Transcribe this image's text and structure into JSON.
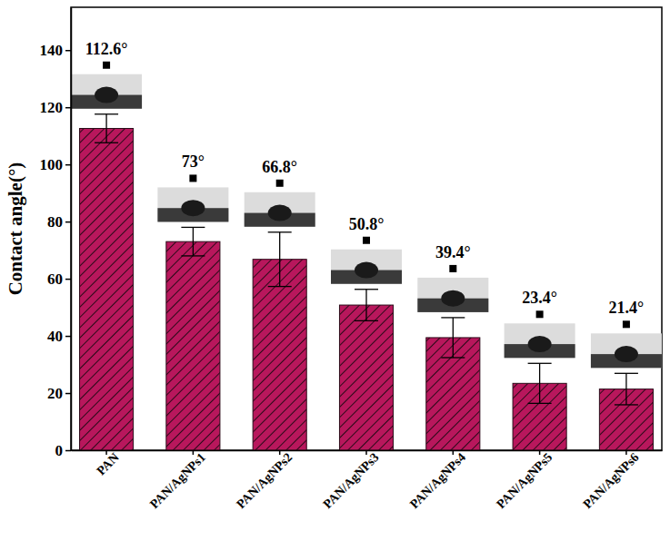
{
  "chart_data": {
    "type": "bar",
    "y_label": "Contact angle(°)",
    "categories": [
      "PAN",
      "PAN/AgNPs1",
      "PAN/AgNPs2",
      "PAN/AgNPs3",
      "PAN/AgNPs4",
      "PAN/AgNPs5",
      "PAN/AgNPs6"
    ],
    "values": [
      112.6,
      73,
      66.8,
      50.8,
      39.4,
      23.4,
      21.4
    ],
    "value_labels": [
      "112.6°",
      "73°",
      "66.8°",
      "50.8°",
      "39.4°",
      "23.4°",
      "21.4°"
    ],
    "errors": [
      5,
      5,
      9.5,
      5.5,
      7,
      7,
      5.5
    ],
    "color": "#b8175c",
    "data_labels": true,
    "ylim": [
      0,
      155
    ],
    "yticks": [
      0,
      20,
      40,
      60,
      80,
      100,
      120,
      140
    ],
    "grid": false
  }
}
